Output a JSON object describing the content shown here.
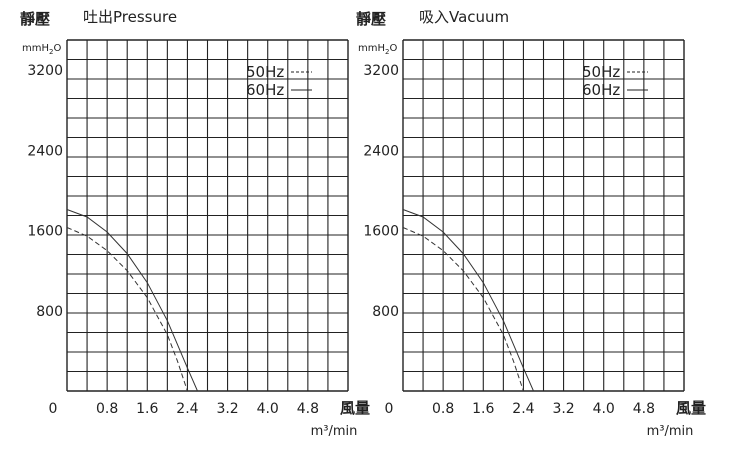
{
  "chart_data": [
    {
      "type": "line",
      "title": "吐出Pressure",
      "ylabel": "靜壓",
      "yunit": "mmH2O",
      "xlabel": "風量",
      "xunit": "m³/min",
      "xlim": [
        0,
        5.6
      ],
      "ylim": [
        0,
        3500
      ],
      "x_ticks": [
        "0",
        "0.8",
        "1.6",
        "2.4",
        "3.2",
        "4.0",
        "4.8"
      ],
      "y_ticks": [
        "800",
        "1600",
        "2400",
        "3200"
      ],
      "grid": true,
      "legend_position": "top-right",
      "series": [
        {
          "name": "50Hz",
          "style": "dashed",
          "x": [
            0,
            0.4,
            0.8,
            1.2,
            1.6,
            2.0,
            2.2,
            2.4
          ],
          "y": [
            1630,
            1545,
            1400,
            1200,
            930,
            560,
            300,
            0
          ]
        },
        {
          "name": "60Hz",
          "style": "solid",
          "x": [
            0,
            0.4,
            0.8,
            1.2,
            1.6,
            2.0,
            2.4,
            2.6
          ],
          "y": [
            1810,
            1735,
            1585,
            1370,
            1080,
            700,
            230,
            0
          ]
        }
      ]
    },
    {
      "type": "line",
      "title": "吸入Vacuum",
      "ylabel": "靜壓",
      "yunit": "mmH2O",
      "xlabel": "風量",
      "xunit": "m³/min",
      "xlim": [
        0,
        5.6
      ],
      "ylim": [
        0,
        3500
      ],
      "x_ticks": [
        "0",
        "0.8",
        "1.6",
        "2.4",
        "3.2",
        "4.0",
        "4.8"
      ],
      "y_ticks": [
        "800",
        "1600",
        "2400",
        "3200"
      ],
      "grid": true,
      "legend_position": "top-right",
      "series": [
        {
          "name": "50Hz",
          "style": "dashed",
          "x": [
            0,
            0.4,
            0.8,
            1.2,
            1.6,
            2.0,
            2.2,
            2.4
          ],
          "y": [
            1630,
            1545,
            1400,
            1200,
            930,
            560,
            300,
            0
          ]
        },
        {
          "name": "60Hz",
          "style": "solid",
          "x": [
            0,
            0.4,
            0.8,
            1.2,
            1.6,
            2.0,
            2.4,
            2.6
          ],
          "y": [
            1810,
            1735,
            1585,
            1370,
            1080,
            700,
            230,
            0
          ]
        }
      ]
    }
  ]
}
